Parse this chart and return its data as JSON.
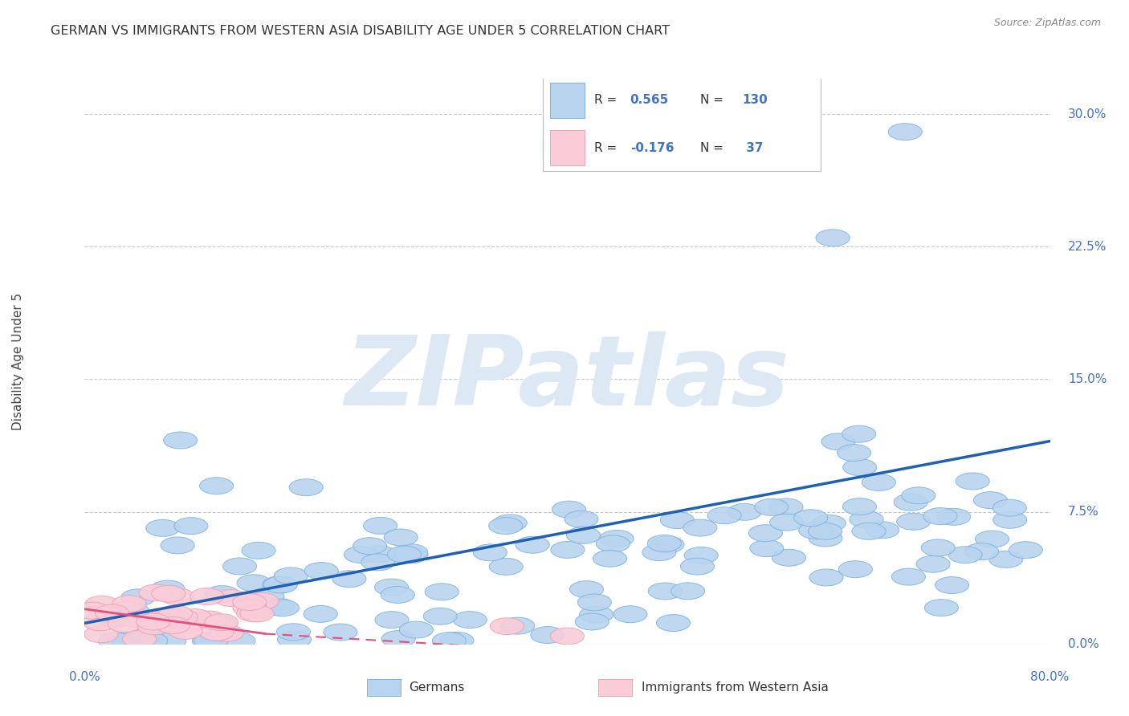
{
  "title": "GERMAN VS IMMIGRANTS FROM WESTERN ASIA DISABILITY AGE UNDER 5 CORRELATION CHART",
  "source": "Source: ZipAtlas.com",
  "ylabel": "Disability Age Under 5",
  "ytick_labels": [
    "0.0%",
    "7.5%",
    "15.0%",
    "22.5%",
    "30.0%"
  ],
  "ytick_values": [
    0.0,
    7.5,
    15.0,
    22.5,
    30.0
  ],
  "xlim": [
    0.0,
    80.0
  ],
  "ylim": [
    0.0,
    32.0
  ],
  "background_color": "#ffffff",
  "grid_color": "#c8c8c8",
  "title_color": "#333333",
  "watermark_text": "ZIPatlas",
  "watermark_color": "#dce9f5",
  "blue_face_color": "#b8d4ee",
  "blue_edge_color": "#7fb3e0",
  "blue_line_color": "#2060b0",
  "pink_face_color": "#f9ccd8",
  "pink_edge_color": "#f0a0b8",
  "pink_line_color": "#e05080",
  "right_axis_color": "#4472c4",
  "xlabel_color": "#4472c4",
  "legend_text_color": "#333333",
  "legend_value_color": "#4472c4",
  "blue_trendline": [
    [
      0,
      80
    ],
    [
      1.2,
      11.5
    ]
  ],
  "pink_trendline_solid": [
    [
      0,
      15
    ],
    [
      2.0,
      0.6
    ]
  ],
  "pink_trendline_dashed": [
    [
      15,
      80
    ],
    [
      0.6,
      -2.0
    ]
  ]
}
